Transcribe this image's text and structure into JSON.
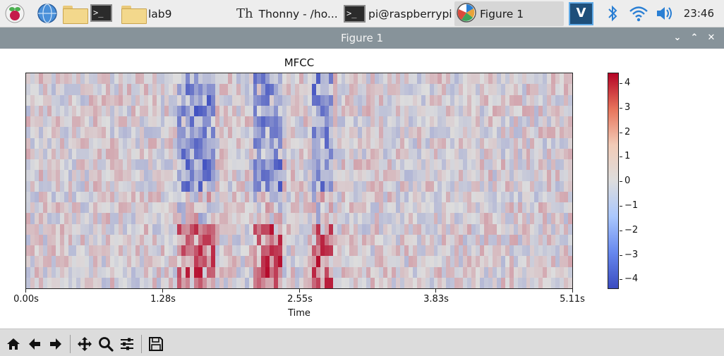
{
  "taskbar": {
    "items": [
      {
        "label": "lab9"
      },
      {
        "label": "Thonny  -  /ho..."
      },
      {
        "label": "pi@raspberrypi..."
      },
      {
        "label": "Figure 1"
      }
    ],
    "clock": "23:46"
  },
  "window": {
    "title": "Figure 1"
  },
  "chart_data": {
    "type": "heatmap",
    "title": "MFCC",
    "xlabel": "Time",
    "ylabel": "",
    "x_ticks": [
      "0.00s",
      "1.28s",
      "2.55s",
      "3.83s",
      "5.11s"
    ],
    "x_range_seconds": [
      0,
      5.11
    ],
    "rows": 20,
    "columns": 130,
    "colormap": "coolwarm",
    "colorbar": {
      "ticks": [
        "4",
        "3",
        "2",
        "1",
        "0",
        "−1",
        "−2",
        "−3",
        "−4"
      ],
      "range": [
        -4.5,
        4.5
      ]
    },
    "colors": {
      "low": "#3b4cc0",
      "mid": "#dddddd",
      "high": "#b40426"
    },
    "grid": false
  }
}
